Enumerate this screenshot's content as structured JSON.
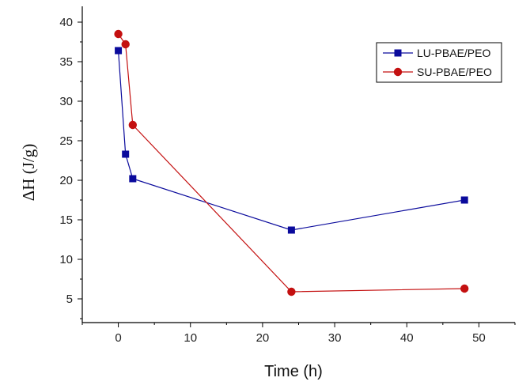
{
  "chart_data": {
    "type": "line",
    "xlabel": "Time (h)",
    "ylabel": "ΔH (J/g)",
    "xlim": [
      -5,
      55
    ],
    "ylim": [
      2,
      42
    ],
    "x_ticks": [
      0,
      10,
      20,
      30,
      40,
      50
    ],
    "y_ticks": [
      5,
      10,
      15,
      20,
      25,
      30,
      35,
      40
    ],
    "grid": false,
    "legend_position": "top-right",
    "series": [
      {
        "name": "LU-PBAE/PEO",
        "color": "#0a0a9c",
        "marker": "square",
        "x": [
          0,
          1,
          2,
          24,
          48
        ],
        "y": [
          36.4,
          23.3,
          20.2,
          13.7,
          17.5
        ]
      },
      {
        "name": "SU-PBAE/PEO",
        "color": "#c41010",
        "marker": "circle",
        "x": [
          0,
          1,
          2,
          24,
          48
        ],
        "y": [
          38.5,
          37.2,
          27.0,
          5.9,
          6.3
        ]
      }
    ]
  }
}
